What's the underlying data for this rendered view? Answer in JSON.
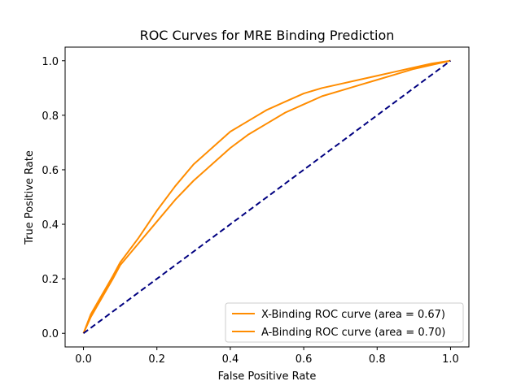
{
  "chart_data": {
    "type": "line",
    "title": "ROC Curves for MRE Binding Prediction",
    "xlabel": "False Positive Rate",
    "ylabel": "True Positive Rate",
    "xlim": [
      -0.05,
      1.05
    ],
    "ylim": [
      -0.05,
      1.05
    ],
    "xticks": [
      "0.0",
      "0.2",
      "0.4",
      "0.6",
      "0.8",
      "1.0"
    ],
    "yticks": [
      "0.0",
      "0.2",
      "0.4",
      "0.6",
      "0.8",
      "1.0"
    ],
    "legend_position": "lower-right",
    "grid": false,
    "series": [
      {
        "name": "X-Binding ROC curve (area = 0.67)",
        "color": "#ff8c00",
        "x": [
          0.0,
          0.02,
          0.05,
          0.08,
          0.1,
          0.15,
          0.2,
          0.25,
          0.3,
          0.35,
          0.4,
          0.45,
          0.5,
          0.55,
          0.6,
          0.65,
          0.7,
          0.75,
          0.8,
          0.85,
          0.9,
          0.95,
          1.0
        ],
        "y": [
          0.0,
          0.06,
          0.13,
          0.2,
          0.25,
          0.33,
          0.41,
          0.49,
          0.56,
          0.62,
          0.68,
          0.73,
          0.77,
          0.81,
          0.84,
          0.87,
          0.89,
          0.91,
          0.93,
          0.95,
          0.97,
          0.985,
          1.0
        ]
      },
      {
        "name": "A-Binding ROC curve (area = 0.70)",
        "color": "#ff8c00",
        "x": [
          0.0,
          0.02,
          0.05,
          0.08,
          0.1,
          0.15,
          0.2,
          0.25,
          0.3,
          0.35,
          0.4,
          0.45,
          0.5,
          0.55,
          0.6,
          0.65,
          0.7,
          0.75,
          0.8,
          0.85,
          0.9,
          0.95,
          1.0
        ],
        "y": [
          0.0,
          0.07,
          0.14,
          0.21,
          0.26,
          0.35,
          0.45,
          0.54,
          0.62,
          0.68,
          0.74,
          0.78,
          0.82,
          0.85,
          0.88,
          0.9,
          0.915,
          0.93,
          0.945,
          0.96,
          0.975,
          0.99,
          1.0
        ]
      },
      {
        "name": "",
        "color": "#000080",
        "dashed": true,
        "x": [
          0.0,
          1.0
        ],
        "y": [
          0.0,
          1.0
        ]
      }
    ]
  }
}
